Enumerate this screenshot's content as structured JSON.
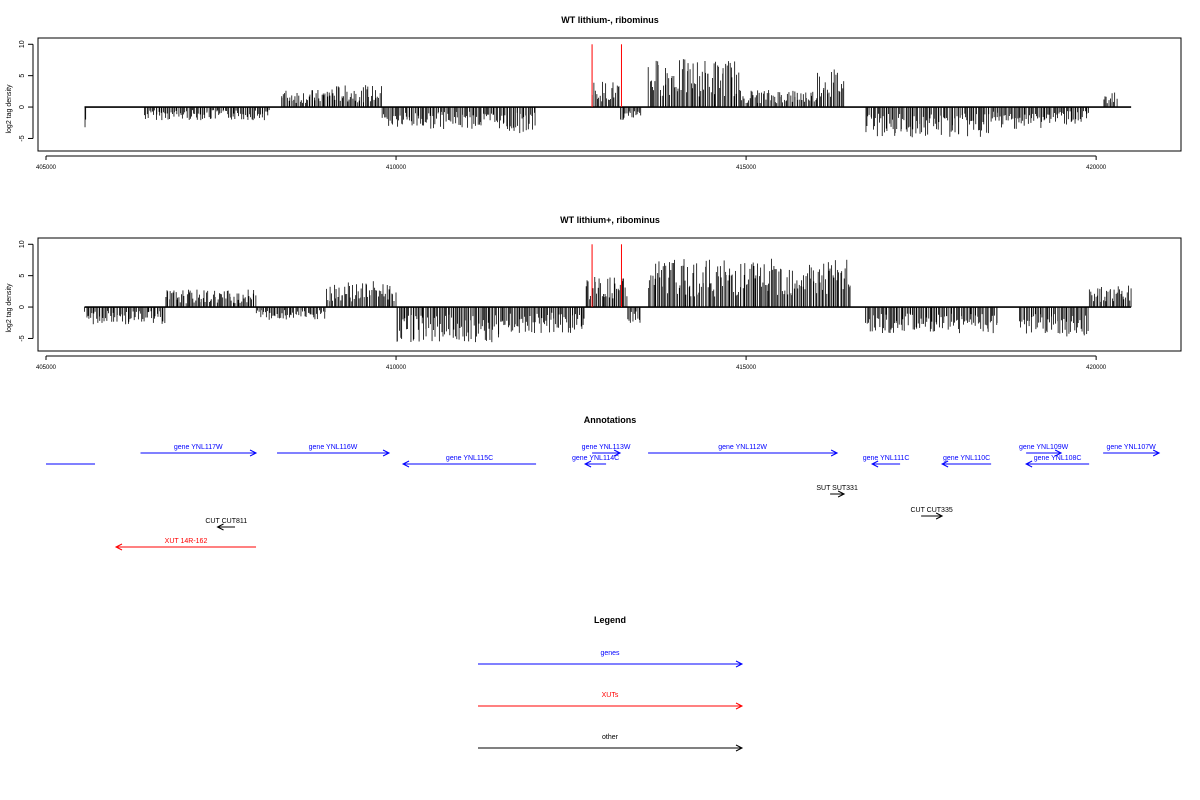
{
  "chart_data": [
    {
      "type": "bar",
      "title": "WT lithium-, ribominus",
      "ylabel": "log2 tag density",
      "xlabel": "",
      "xlim": [
        405000,
        421000
      ],
      "ylim": [
        -7,
        11
      ],
      "x_ticks": [
        405000,
        410000,
        415000,
        420000
      ],
      "y_ticks": [
        -5,
        0,
        5,
        10
      ],
      "grid": false,
      "series": [
        {
          "values_description_free_segments": true,
          "segments": [
            {
              "x": [
                405550,
                405580
              ],
              "y": -3.5
            },
            {
              "x": [
                406400,
                407300
              ],
              "y": -1.5
            },
            {
              "x": [
                407300,
                408200
              ],
              "y": -1.5
            },
            {
              "x": [
                408350,
                409000
              ],
              "y": 2.0
            },
            {
              "x": [
                409000,
                409800
              ],
              "y": 2.5
            },
            {
              "x": [
                409800,
                410800
              ],
              "y": -2.5
            },
            {
              "x": [
                410800,
                411500
              ],
              "y": -2.5
            },
            {
              "x": [
                411500,
                412000
              ],
              "y": -3.0
            },
            {
              "x": [
                412800,
                413200
              ],
              "y": 3.0
            },
            {
              "x": [
                413200,
                413500
              ],
              "y": -1.5
            },
            {
              "x": [
                413600,
                414900
              ],
              "y": 5.5
            },
            {
              "x": [
                414900,
                415500
              ],
              "y": 2.0
            },
            {
              "x": [
                415500,
                416000
              ],
              "y": 2.0
            },
            {
              "x": [
                416000,
                416400
              ],
              "y": 4.5
            },
            {
              "x": [
                416700,
                418500
              ],
              "y": -3.5
            },
            {
              "x": [
                418500,
                419300
              ],
              "y": -2.5
            },
            {
              "x": [
                419300,
                419900
              ],
              "y": -2.0
            },
            {
              "x": [
                420100,
                420300
              ],
              "y": 2.0
            }
          ]
        }
      ],
      "markers": [
        412800,
        413220
      ]
    },
    {
      "type": "bar",
      "title": "WT lithium+, ribominus",
      "ylabel": "log2 tag density",
      "xlabel": "",
      "xlim": [
        405000,
        421000
      ],
      "ylim": [
        -7,
        11
      ],
      "x_ticks": [
        405000,
        410000,
        415000,
        420000
      ],
      "y_ticks": [
        -5,
        0,
        5,
        10
      ],
      "grid": false,
      "series": [
        {
          "segments": [
            {
              "x": [
                405550,
                406700
              ],
              "y": -2.0
            },
            {
              "x": [
                406700,
                408000
              ],
              "y": 2.0
            },
            {
              "x": [
                408000,
                409000
              ],
              "y": -1.5
            },
            {
              "x": [
                409000,
                410000
              ],
              "y": 3.0
            },
            {
              "x": [
                410000,
                411500
              ],
              "y": -4.0
            },
            {
              "x": [
                411500,
                412700
              ],
              "y": -3.0
            },
            {
              "x": [
                412700,
                413300
              ],
              "y": 3.5
            },
            {
              "x": [
                413300,
                413500
              ],
              "y": -2.0
            },
            {
              "x": [
                413600,
                416500
              ],
              "y": 5.5
            },
            {
              "x": [
                416700,
                418600
              ],
              "y": -3.0
            },
            {
              "x": [
                418900,
                419900
              ],
              "y": -3.5
            },
            {
              "x": [
                419900,
                420500
              ],
              "y": 2.5
            }
          ]
        }
      ],
      "markers": [
        412800,
        413220
      ]
    }
  ],
  "annotations": {
    "title": "Annotations",
    "features": [
      {
        "label": "",
        "start": 405000,
        "end": 405700,
        "strand": "none",
        "color": "blue",
        "row": 1
      },
      {
        "label": "gene YNL117W",
        "start": 406350,
        "end": 408000,
        "strand": "+",
        "color": "blue",
        "row": 0
      },
      {
        "label": "gene YNL116W",
        "start": 408300,
        "end": 409900,
        "strand": "+",
        "color": "blue",
        "row": 0
      },
      {
        "label": "gene YNL115C",
        "start": 410100,
        "end": 412000,
        "strand": "-",
        "color": "blue",
        "row": 1
      },
      {
        "label": "gene YNL113W",
        "start": 412800,
        "end": 413200,
        "strand": "+",
        "color": "blue",
        "row": 0
      },
      {
        "label": "gene YNL114C",
        "start": 412700,
        "end": 413000,
        "strand": "-",
        "color": "blue",
        "row": 1
      },
      {
        "label": "gene YNL112W",
        "start": 413600,
        "end": 416300,
        "strand": "+",
        "color": "blue",
        "row": 0
      },
      {
        "label": "gene YNL111C",
        "start": 416800,
        "end": 417200,
        "strand": "-",
        "color": "blue",
        "row": 1
      },
      {
        "label": "gene YNL110C",
        "start": 417800,
        "end": 418500,
        "strand": "-",
        "color": "blue",
        "row": 1
      },
      {
        "label": "gene YNL109W",
        "start": 419000,
        "end": 419500,
        "strand": "+",
        "color": "blue",
        "row": 0
      },
      {
        "label": "gene YNL108C",
        "start": 419000,
        "end": 419900,
        "strand": "-",
        "color": "blue",
        "row": 1
      },
      {
        "label": "gene YNL107W",
        "start": 420100,
        "end": 420900,
        "strand": "+",
        "color": "blue",
        "row": 0
      },
      {
        "label": "SUT SUT331",
        "start": 416200,
        "end": 416400,
        "strand": "+",
        "color": "black",
        "row": 3
      },
      {
        "label": "CUT CUT335",
        "start": 417500,
        "end": 417800,
        "strand": "+",
        "color": "black",
        "row": 4
      },
      {
        "label": "CUT CUT811",
        "start": 407450,
        "end": 407700,
        "strand": "-",
        "color": "black",
        "row": 5
      },
      {
        "label": "XUT 14R-162",
        "start": 406000,
        "end": 408000,
        "strand": "-",
        "color": "red",
        "row": 6
      }
    ]
  },
  "legend": {
    "title": "Legend",
    "items": [
      {
        "label": "genes",
        "color": "#0000ff"
      },
      {
        "label": "XUTs",
        "color": "#ff0000"
      },
      {
        "label": "other",
        "color": "#000000"
      }
    ]
  }
}
